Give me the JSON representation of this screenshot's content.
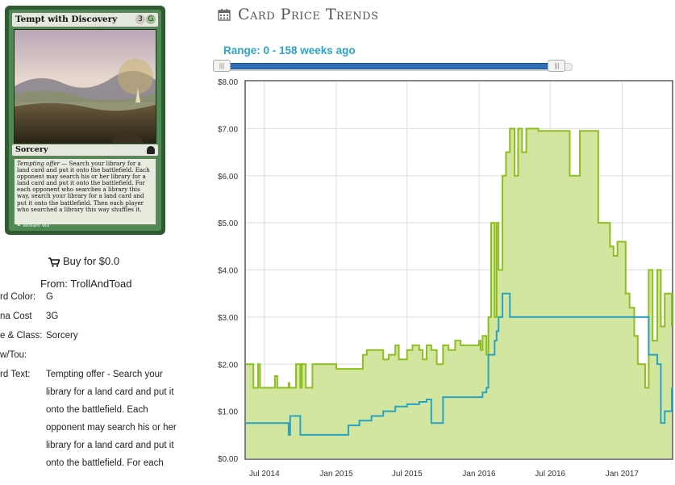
{
  "card": {
    "name": "Tempt with Discovery",
    "mana_symbols": [
      "3",
      "G"
    ],
    "type_line": "Sorcery",
    "rules_reminder": "Tempting offer",
    "rules_text": " — Search your library for a land card and put it onto the battlefield. Each opponent may search his or her library for a land card and put it onto the battlefield. For each opponent who searches a library this way, search your library for a land card and put it onto the battlefield. Then each player who searched a library this way shuffles it.",
    "illustrator": "William Wu",
    "colors": {
      "frame": "#2f5b33",
      "frame_inner": "#4f8a52",
      "textbox": "#e8ecdf"
    }
  },
  "buy": {
    "label": "Buy for $0.0",
    "from": "From: TrollAndToad",
    "icon": "shopping-cart-icon"
  },
  "attributes": [
    {
      "label": "rd Color:",
      "value": "G"
    },
    {
      "label": "na Cost",
      "value": "3G"
    },
    {
      "label": "e & Class:",
      "value": "Sorcery"
    },
    {
      "label": "w/Tou:",
      "value": ""
    },
    {
      "label": "rd Text:",
      "value": "Tempting offer - Search your library for a land card and put it onto the battlefield. Each opponent may search his or her library for a land card and put it onto the battlefield. For each"
    }
  ],
  "header": {
    "title": "Card Price Trends",
    "icon": "calendar-icon"
  },
  "range": {
    "label": "Range: 0 - 158 weeks ago",
    "min_weeks": 0,
    "max_weeks": 158,
    "handle_left_fraction": 0.0,
    "handle_right_fraction": 1.0
  },
  "chart_data": {
    "type": "area",
    "title": "",
    "xlabel": "",
    "ylabel": "",
    "ylim": [
      0,
      8
    ],
    "y_ticks": [
      "$0.00",
      "$1.00",
      "$2.00",
      "$3.00",
      "$4.00",
      "$5.00",
      "$6.00",
      "$7.00",
      "$8.00"
    ],
    "x_ticks": [
      {
        "date": "2014-07-01",
        "label": "Jul 2014"
      },
      {
        "date": "2015-01-01",
        "label": "Jan 2015"
      },
      {
        "date": "2015-07-01",
        "label": "Jul 2015"
      },
      {
        "date": "2016-01-01",
        "label": "Jan 2016"
      },
      {
        "date": "2016-07-01",
        "label": "Jul 2016"
      },
      {
        "date": "2017-01-01",
        "label": "Jan 2017"
      }
    ],
    "x_range": [
      "2014-05-15",
      "2017-05-08"
    ],
    "grid": true,
    "legend": "none",
    "colors": {
      "high": "#8cbf1e",
      "high_fill": "#d3e6a0",
      "low": "#28a3c4"
    },
    "series": [
      {
        "key": "high",
        "x": [
          "2014-05-15",
          "2014-06-01",
          "2014-06-03",
          "2014-06-10",
          "2014-06-15",
          "2014-06-20",
          "2014-07-25",
          "2014-07-28",
          "2014-08-03",
          "2014-08-08",
          "2014-08-20",
          "2014-09-01",
          "2014-09-03",
          "2014-09-10",
          "2014-09-20",
          "2014-10-01",
          "2014-10-05",
          "2014-10-15",
          "2014-11-01",
          "2014-12-01",
          "2015-01-01",
          "2015-02-15",
          "2015-03-01",
          "2015-03-10",
          "2015-03-20",
          "2015-04-01",
          "2015-04-15",
          "2015-05-01",
          "2015-05-15",
          "2015-06-01",
          "2015-06-10",
          "2015-07-01",
          "2015-07-15",
          "2015-08-01",
          "2015-08-10",
          "2015-08-20",
          "2015-09-01",
          "2015-09-15",
          "2015-10-01",
          "2015-10-15",
          "2015-11-01",
          "2015-11-15",
          "2015-12-01",
          "2015-12-15",
          "2016-01-01",
          "2016-01-05",
          "2016-01-10",
          "2016-01-20",
          "2016-01-25",
          "2016-02-01",
          "2016-02-10",
          "2016-02-15",
          "2016-02-20",
          "2016-03-01",
          "2016-03-10",
          "2016-03-20",
          "2016-04-01",
          "2016-04-10",
          "2016-04-20",
          "2016-05-01",
          "2016-06-01",
          "2016-07-01",
          "2016-08-01",
          "2016-08-20",
          "2016-09-01",
          "2016-09-15",
          "2016-09-20",
          "2016-10-01",
          "2016-10-20",
          "2016-11-01",
          "2016-11-05",
          "2016-11-10",
          "2016-12-01",
          "2016-12-10",
          "2016-12-20",
          "2017-01-01",
          "2017-01-10",
          "2017-01-20",
          "2017-02-01",
          "2017-02-10",
          "2017-03-01",
          "2017-03-10",
          "2017-03-20",
          "2017-04-01",
          "2017-04-10",
          "2017-04-20",
          "2017-05-08"
        ],
        "y": [
          2.0,
          2.0,
          1.5,
          1.5,
          2.0,
          1.5,
          1.5,
          1.75,
          1.5,
          1.5,
          1.5,
          1.6,
          1.5,
          1.5,
          2.0,
          1.5,
          2.0,
          1.5,
          2.0,
          2.0,
          1.9,
          1.9,
          1.9,
          2.2,
          2.3,
          2.3,
          2.3,
          2.1,
          2.2,
          2.4,
          2.1,
          2.3,
          2.4,
          2.3,
          2.1,
          2.4,
          2.3,
          2.0,
          2.4,
          2.3,
          2.5,
          2.4,
          2.4,
          2.4,
          2.5,
          2.3,
          2.6,
          2.2,
          3.0,
          5.0,
          3.0,
          5.0,
          4.0,
          6.0,
          6.5,
          7.0,
          6.0,
          7.0,
          6.5,
          7.0,
          6.95,
          6.95,
          6.95,
          6.0,
          6.0,
          6.95,
          6.95,
          6.95,
          6.95,
          5.0,
          5.0,
          5.0,
          4.5,
          4.3,
          4.6,
          4.6,
          3.5,
          3.2,
          2.6,
          2.0,
          1.5,
          4.0,
          2.5,
          4.0,
          2.8,
          3.5,
          2.8
        ]
      },
      {
        "key": "low",
        "x": [
          "2014-05-15",
          "2014-06-01",
          "2014-07-01",
          "2014-08-01",
          "2014-09-01",
          "2014-09-05",
          "2014-10-01",
          "2014-11-01",
          "2014-12-01",
          "2015-01-01",
          "2015-02-01",
          "2015-03-01",
          "2015-04-01",
          "2015-05-01",
          "2015-06-01",
          "2015-07-01",
          "2015-08-01",
          "2015-08-20",
          "2015-09-01",
          "2015-10-01",
          "2015-11-01",
          "2015-12-01",
          "2015-12-20",
          "2016-01-01",
          "2016-01-10",
          "2016-01-20",
          "2016-01-25",
          "2016-02-01",
          "2016-02-10",
          "2016-02-15",
          "2016-02-20",
          "2016-03-01",
          "2016-03-10",
          "2016-03-20",
          "2016-04-01",
          "2016-05-01",
          "2016-06-01",
          "2016-07-01",
          "2016-08-01",
          "2016-09-01",
          "2016-10-01",
          "2016-11-01",
          "2016-12-01",
          "2017-01-01",
          "2017-02-01",
          "2017-03-01",
          "2017-03-10",
          "2017-03-20",
          "2017-04-01",
          "2017-04-10",
          "2017-04-20",
          "2017-05-01",
          "2017-05-08"
        ],
        "y": [
          0.75,
          0.75,
          0.75,
          0.75,
          0.5,
          0.9,
          0.5,
          0.5,
          0.5,
          0.5,
          0.7,
          0.8,
          0.9,
          1.0,
          1.1,
          1.15,
          1.2,
          1.25,
          0.75,
          1.3,
          1.3,
          1.3,
          1.3,
          1.3,
          1.4,
          1.5,
          2.2,
          2.2,
          2.5,
          2.7,
          3.0,
          3.5,
          3.5,
          3.0,
          3.0,
          3.0,
          3.0,
          3.0,
          3.0,
          3.0,
          3.0,
          3.0,
          3.0,
          3.0,
          3.0,
          3.0,
          2.2,
          2.2,
          2.0,
          0.75,
          1.0,
          1.0,
          1.5
        ]
      }
    ]
  }
}
